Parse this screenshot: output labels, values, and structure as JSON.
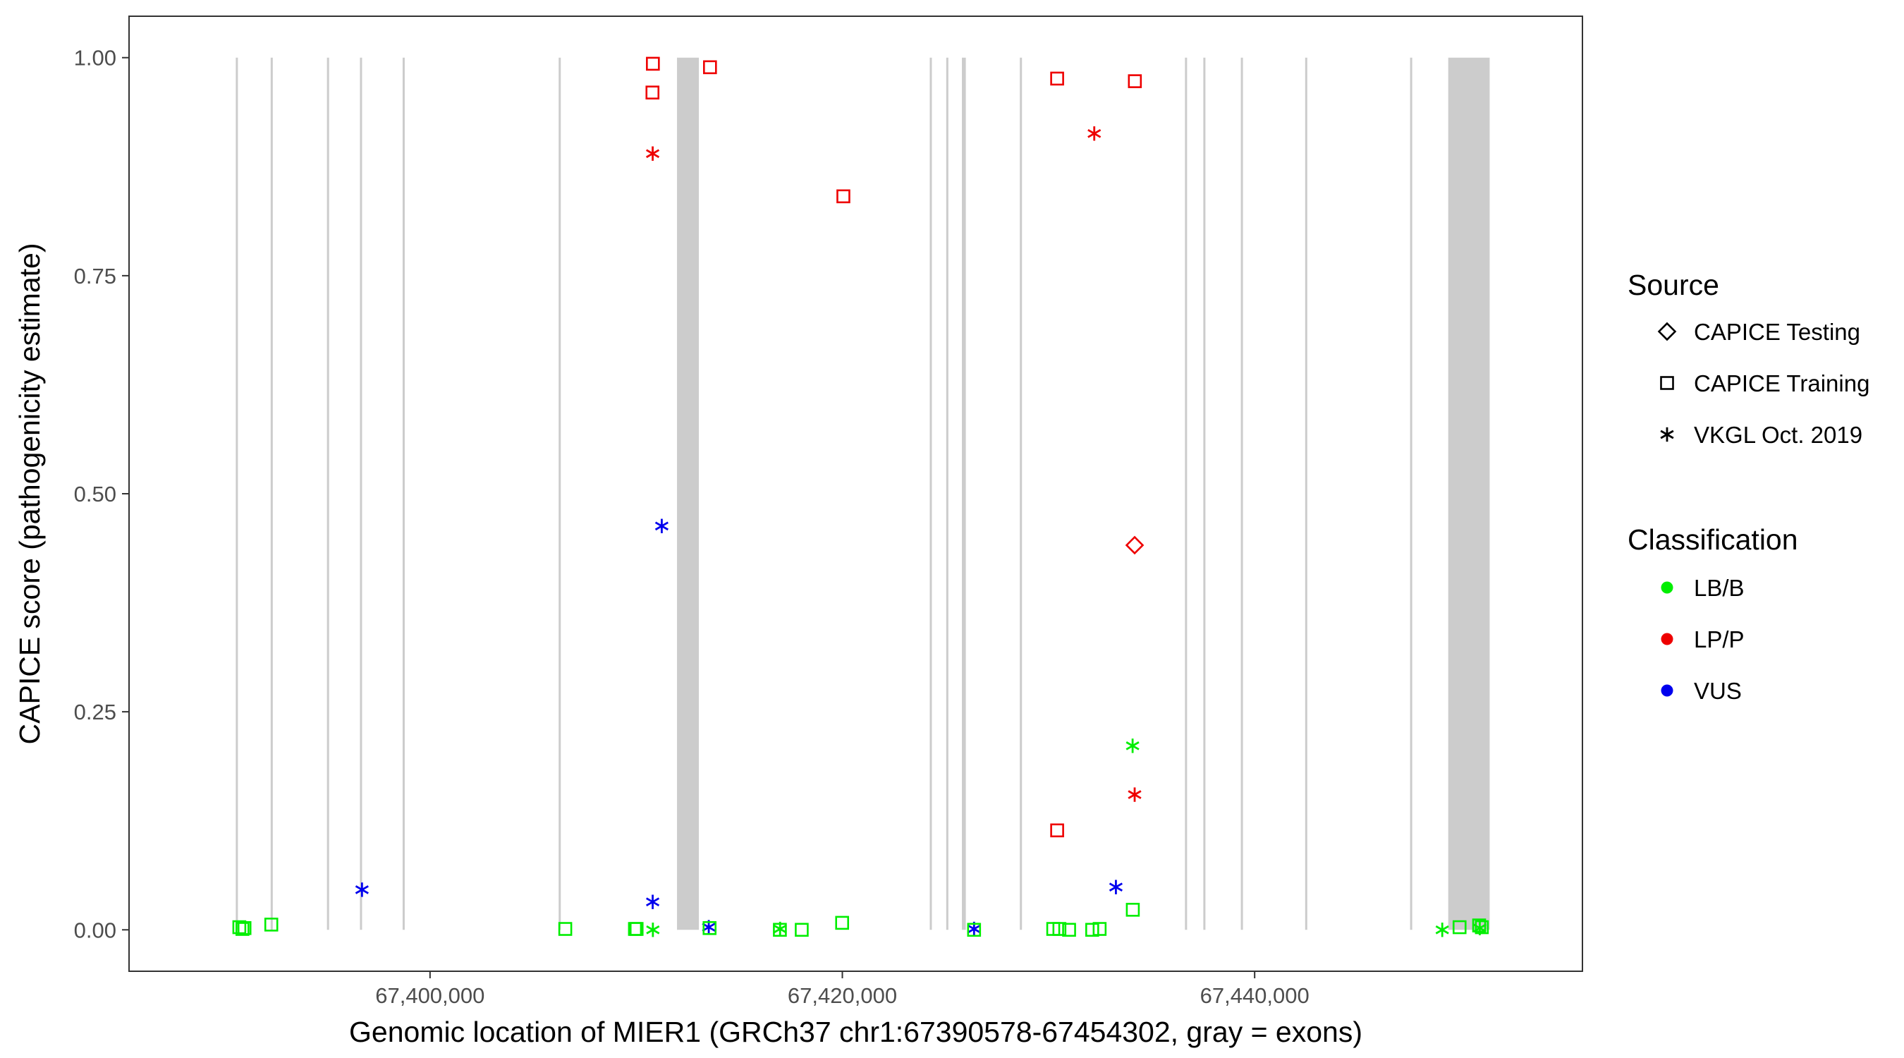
{
  "chart_data": {
    "type": "scatter",
    "title": "",
    "xlabel": "Genomic location of MIER1 (GRCh37 chr1:67390578-67454302, gray = exons)",
    "ylabel": "CAPICE score (pathogenicity estimate)",
    "xlim": [
      67385400,
      67455900
    ],
    "ylim": [
      -0.0475,
      1.0475
    ],
    "x_ticks": [
      {
        "value": 67400000,
        "label": "67,400,000"
      },
      {
        "value": 67420000,
        "label": "67,420,000"
      },
      {
        "value": 67440000,
        "label": "67,440,000"
      }
    ],
    "y_ticks": [
      {
        "value": 0,
        "label": "0.00"
      },
      {
        "value": 0.25,
        "label": "0.25"
      },
      {
        "value": 0.5,
        "label": "0.50"
      },
      {
        "value": 0.75,
        "label": "0.75"
      },
      {
        "value": 1,
        "label": "1.00"
      }
    ],
    "grid": false,
    "exons": [
      {
        "start": 67390578,
        "end": 67390640
      },
      {
        "start": 67392270,
        "end": 67392300
      },
      {
        "start": 67395000,
        "end": 67395030
      },
      {
        "start": 67396600,
        "end": 67396680
      },
      {
        "start": 67398670,
        "end": 67398710
      },
      {
        "start": 67406240,
        "end": 67406290
      },
      {
        "start": 67411980,
        "end": 67413040
      },
      {
        "start": 67424240,
        "end": 67424280
      },
      {
        "start": 67425040,
        "end": 67425070
      },
      {
        "start": 67425800,
        "end": 67425990
      },
      {
        "start": 67428610,
        "end": 67428640
      },
      {
        "start": 67436620,
        "end": 67436690
      },
      {
        "start": 67437510,
        "end": 67437550
      },
      {
        "start": 67439330,
        "end": 67439390
      },
      {
        "start": 67442450,
        "end": 67442490
      },
      {
        "start": 67447540,
        "end": 67447610
      },
      {
        "start": 67449390,
        "end": 67451400
      }
    ],
    "legend": {
      "placement": "right",
      "source_title": "Source",
      "classification_title": "Classification",
      "sources": [
        {
          "label": "CAPICE Testing",
          "shape": "diamond"
        },
        {
          "label": "CAPICE Training",
          "shape": "square"
        },
        {
          "label": "VKGL Oct. 2019",
          "shape": "asterisk"
        }
      ],
      "classes": [
        {
          "label": "LB/B",
          "color": "#00ee00"
        },
        {
          "label": "LP/P",
          "color": "#ee0000"
        },
        {
          "label": "VUS",
          "color": "#0000ee"
        }
      ]
    },
    "points": [
      {
        "x": 67410810,
        "y": 0.993,
        "source": "CAPICE Training",
        "class": "LP/P"
      },
      {
        "x": 67413580,
        "y": 0.989,
        "source": "CAPICE Training",
        "class": "LP/P"
      },
      {
        "x": 67410790,
        "y": 0.96,
        "source": "CAPICE Training",
        "class": "LP/P"
      },
      {
        "x": 67410800,
        "y": 0.89,
        "source": "VKGL Oct. 2019",
        "class": "LP/P"
      },
      {
        "x": 67420050,
        "y": 0.841,
        "source": "CAPICE Training",
        "class": "LP/P"
      },
      {
        "x": 67430420,
        "y": 0.976,
        "source": "CAPICE Training",
        "class": "LP/P"
      },
      {
        "x": 67434190,
        "y": 0.973,
        "source": "CAPICE Training",
        "class": "LP/P"
      },
      {
        "x": 67432220,
        "y": 0.913,
        "source": "VKGL Oct. 2019",
        "class": "LP/P"
      },
      {
        "x": 67434180,
        "y": 0.441,
        "source": "CAPICE Testing",
        "class": "LP/P"
      },
      {
        "x": 67434180,
        "y": 0.155,
        "source": "VKGL Oct. 2019",
        "class": "LP/P"
      },
      {
        "x": 67430420,
        "y": 0.114,
        "source": "CAPICE Training",
        "class": "LP/P"
      },
      {
        "x": 67411240,
        "y": 0.463,
        "source": "VKGL Oct. 2019",
        "class": "VUS"
      },
      {
        "x": 67396700,
        "y": 0.046,
        "source": "VKGL Oct. 2019",
        "class": "VUS"
      },
      {
        "x": 67410800,
        "y": 0.032,
        "source": "VKGL Oct. 2019",
        "class": "VUS"
      },
      {
        "x": 67413520,
        "y": 0.003,
        "source": "VKGL Oct. 2019",
        "class": "VUS"
      },
      {
        "x": 67433270,
        "y": 0.049,
        "source": "VKGL Oct. 2019",
        "class": "VUS"
      },
      {
        "x": 67426390,
        "y": 0.001,
        "source": "VKGL Oct. 2019",
        "class": "VUS"
      },
      {
        "x": 67434080,
        "y": 0.211,
        "source": "VKGL Oct. 2019",
        "class": "LB/B"
      },
      {
        "x": 67434090,
        "y": 0.023,
        "source": "CAPICE Training",
        "class": "LB/B"
      },
      {
        "x": 67390750,
        "y": 0.003,
        "source": "CAPICE Training",
        "class": "LB/B"
      },
      {
        "x": 67390900,
        "y": 0.001,
        "source": "CAPICE Training",
        "class": "LB/B"
      },
      {
        "x": 67391000,
        "y": 0.002,
        "source": "CAPICE Training",
        "class": "LB/B"
      },
      {
        "x": 67392300,
        "y": 0.006,
        "source": "CAPICE Training",
        "class": "LB/B"
      },
      {
        "x": 67406560,
        "y": 0.001,
        "source": "CAPICE Training",
        "class": "LB/B"
      },
      {
        "x": 67409940,
        "y": 0.001,
        "source": "CAPICE Training",
        "class": "LB/B"
      },
      {
        "x": 67410020,
        "y": 0.001,
        "source": "CAPICE Training",
        "class": "LB/B"
      },
      {
        "x": 67410810,
        "y": 0.0,
        "source": "VKGL Oct. 2019",
        "class": "LB/B"
      },
      {
        "x": 67413560,
        "y": 0.002,
        "source": "CAPICE Training",
        "class": "LB/B"
      },
      {
        "x": 67416970,
        "y": 0.0,
        "source": "CAPICE Training",
        "class": "LB/B"
      },
      {
        "x": 67416980,
        "y": 0.001,
        "source": "VKGL Oct. 2019",
        "class": "LB/B"
      },
      {
        "x": 67418030,
        "y": 0.0,
        "source": "CAPICE Training",
        "class": "LB/B"
      },
      {
        "x": 67419990,
        "y": 0.008,
        "source": "CAPICE Training",
        "class": "LB/B"
      },
      {
        "x": 67426390,
        "y": 0.0,
        "source": "CAPICE Training",
        "class": "LB/B"
      },
      {
        "x": 67430230,
        "y": 0.001,
        "source": "CAPICE Training",
        "class": "LB/B"
      },
      {
        "x": 67430530,
        "y": 0.001,
        "source": "CAPICE Training",
        "class": "LB/B"
      },
      {
        "x": 67431000,
        "y": 0.0,
        "source": "CAPICE Training",
        "class": "LB/B"
      },
      {
        "x": 67432120,
        "y": 0.0,
        "source": "CAPICE Training",
        "class": "LB/B"
      },
      {
        "x": 67432480,
        "y": 0.001,
        "source": "CAPICE Training",
        "class": "LB/B"
      },
      {
        "x": 67449100,
        "y": 0.0,
        "source": "VKGL Oct. 2019",
        "class": "LB/B"
      },
      {
        "x": 67449940,
        "y": 0.003,
        "source": "CAPICE Training",
        "class": "LB/B"
      },
      {
        "x": 67450890,
        "y": 0.005,
        "source": "CAPICE Training",
        "class": "LB/B"
      },
      {
        "x": 67450920,
        "y": 0.002,
        "source": "VKGL Oct. 2019",
        "class": "LB/B"
      },
      {
        "x": 67451020,
        "y": 0.003,
        "source": "CAPICE Training",
        "class": "LB/B"
      }
    ]
  }
}
